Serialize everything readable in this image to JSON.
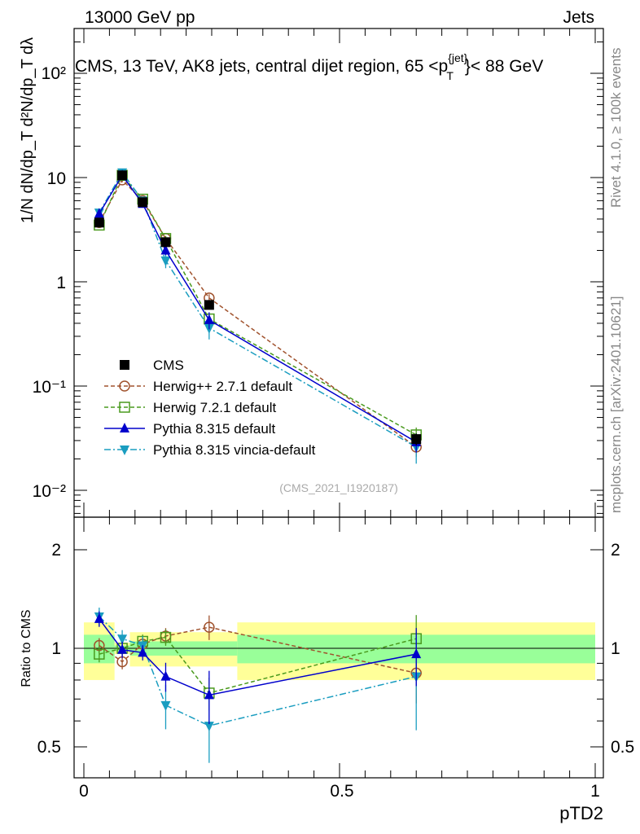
{
  "header": {
    "energy": "13000 GeV pp",
    "category": "Jets",
    "plot_title": "CMS, 13 TeV, AK8 jets, central dijet region, 65 <p",
    "plot_title_sup": "{jet}",
    "plot_title_sub": "T",
    "plot_title_end": "}< 88 GeV"
  },
  "side_labels": {
    "rivet": "Rivet 4.1.0, ≥ 100k events",
    "mcplots": "mcplots.cern.ch [arXiv:2401.10621]"
  },
  "analysis_id": "(CMS_2021_I1920187)",
  "axis_labels": {
    "ylabel_main": "1/N dN/dp_T d²N/dp_T dλ",
    "ylabel_ratio": "Ratio to CMS",
    "xlabel": "pTD2"
  },
  "ticks": {
    "main_y": [
      "10²",
      "10",
      "1",
      "10⁻¹",
      "10⁻²"
    ],
    "ratio_y": [
      "2",
      "1",
      "0.5"
    ],
    "ratio_y_right": [
      "2",
      "1",
      "0.5"
    ],
    "x": [
      "0",
      "0.5",
      "1"
    ]
  },
  "colors": {
    "cms": "#000000",
    "herwigpp": "#a0522d",
    "herwig7": "#4a9a1e",
    "pythia": "#0000cc",
    "vincia": "#1a9dc0",
    "band_outer": "#ffff99",
    "band_inner": "#99ff99"
  },
  "chart_data": {
    "type": "line",
    "xlabel": "pTD2",
    "ylabel": "1/N dN/dp_T d²N/dp_T dλ",
    "xlim": [
      0,
      1
    ],
    "ylim_main": [
      0.006,
      300
    ],
    "yscale_main": "log",
    "ylim_ratio": [
      0.4,
      2.5
    ],
    "yscale_ratio": "log",
    "legend_position": "lower-left",
    "series": [
      {
        "name": "CMS",
        "style": "square-filled",
        "line": "none",
        "x": [
          0.03,
          0.075,
          0.115,
          0.16,
          0.245,
          0.65
        ],
        "y": [
          3.7,
          10.5,
          5.8,
          2.4,
          0.6,
          0.031
        ],
        "yerr": [
          0.25,
          0.6,
          0.35,
          0.15,
          0.05,
          0.004
        ],
        "ratio": [
          1,
          1,
          1,
          1,
          1,
          1
        ]
      },
      {
        "name": "Herwig++ 2.7.1 default",
        "style": "circle-open",
        "line": "dashed",
        "x": [
          0.03,
          0.075,
          0.115,
          0.16,
          0.245,
          0.65
        ],
        "y": [
          3.7,
          9.5,
          6.0,
          2.6,
          0.7,
          0.026
        ],
        "yerr": [
          0.2,
          0.5,
          0.3,
          0.15,
          0.06,
          0.005
        ],
        "ratio": [
          1.02,
          0.91,
          1.03,
          1.09,
          1.16,
          0.84
        ]
      },
      {
        "name": "Herwig 7.2.1 default",
        "style": "square-open",
        "line": "dashed",
        "x": [
          0.03,
          0.075,
          0.115,
          0.16,
          0.245,
          0.65
        ],
        "y": [
          3.5,
          10.5,
          6.2,
          2.6,
          0.44,
          0.034
        ],
        "yerr": [
          0.2,
          0.5,
          0.3,
          0.15,
          0.05,
          0.006
        ],
        "ratio": [
          0.96,
          1.0,
          1.05,
          1.08,
          0.73,
          1.07
        ]
      },
      {
        "name": "Pythia 8.315 default",
        "style": "triangle-up",
        "line": "solid",
        "x": [
          0.03,
          0.075,
          0.115,
          0.16,
          0.245,
          0.65
        ],
        "y": [
          4.5,
          10.5,
          5.6,
          2.0,
          0.43,
          0.029
        ],
        "yerr": [
          0.25,
          0.6,
          0.3,
          0.2,
          0.08,
          0.006
        ],
        "ratio": [
          1.23,
          0.99,
          0.97,
          0.82,
          0.72,
          0.96
        ]
      },
      {
        "name": "Pythia 8.315 vincia-default",
        "style": "triangle-down",
        "line": "dashdot",
        "x": [
          0.03,
          0.075,
          0.115,
          0.16,
          0.245,
          0.65
        ],
        "y": [
          4.6,
          11.2,
          6.0,
          1.6,
          0.36,
          0.026
        ],
        "yerr": [
          0.3,
          0.7,
          0.4,
          0.25,
          0.08,
          0.008
        ],
        "ratio": [
          1.25,
          1.07,
          1.02,
          0.67,
          0.58,
          0.82
        ]
      }
    ],
    "ratio_band": [
      {
        "x0": 0.0,
        "x1": 0.06,
        "outer": [
          0.8,
          1.2
        ],
        "inner": [
          0.9,
          1.1
        ]
      },
      {
        "x0": 0.06,
        "x1": 0.09,
        "outer": [
          0.96,
          1.04
        ],
        "inner": [
          0.98,
          1.02
        ]
      },
      {
        "x0": 0.09,
        "x1": 0.3,
        "outer": [
          0.88,
          1.12
        ],
        "inner": [
          0.95,
          1.05
        ]
      },
      {
        "x0": 0.3,
        "x1": 1.0,
        "outer": [
          0.8,
          1.2
        ],
        "inner": [
          0.9,
          1.1
        ]
      }
    ]
  }
}
